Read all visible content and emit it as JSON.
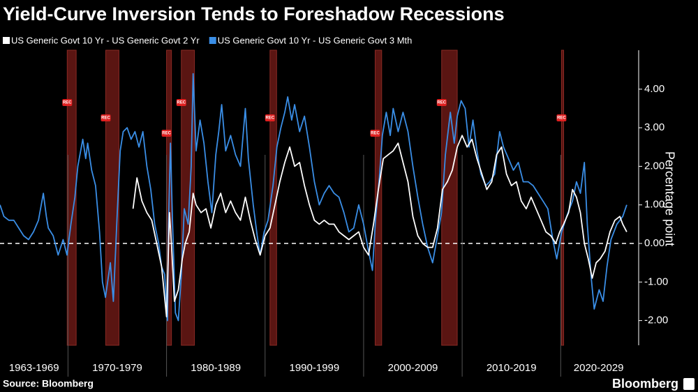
{
  "chart_data": {
    "type": "line",
    "title": "Yield-Curve Inversion Tends to Foreshadow Recessions",
    "y_label": "Percentage point",
    "source": "Source: Bloomberg",
    "brand": "Bloomberg",
    "recession_label": "REC",
    "xlim": [
      1963.1,
      2027.7
    ],
    "xticks": [
      1970,
      1980,
      1990,
      2000,
      2010,
      2020
    ],
    "x_period_labels": [
      "1963-1969",
      "1970-1979",
      "1980-1989",
      "1990-1999",
      "2000-2009",
      "2010-2019",
      "2020-2029"
    ],
    "ylim": [
      -2.64,
      5.01
    ],
    "yticks": [
      {
        "value": -2,
        "label": "-2.00"
      },
      {
        "value": -1,
        "label": "-1.00"
      },
      {
        "value": 0,
        "label": "0.00"
      },
      {
        "value": 1,
        "label": "1.00"
      },
      {
        "value": 2,
        "label": "2.00"
      },
      {
        "value": 3,
        "label": "3.00"
      },
      {
        "value": 4,
        "label": "4.00"
      }
    ],
    "zero_line": true,
    "recessions": [
      [
        1969.92,
        1970.83
      ],
      [
        1973.83,
        1975.17
      ],
      [
        1980.0,
        1980.5
      ],
      [
        1981.5,
        1982.83
      ],
      [
        1990.5,
        1991.17
      ],
      [
        2001.17,
        2001.83
      ],
      [
        2007.92,
        2009.5
      ],
      [
        2020.08,
        2020.3
      ]
    ],
    "series": [
      {
        "name": "US Generic Govt 10 Yr - US Generic Govt 2 Yr",
        "color": "#ffffff",
        "x": [
          1976.6,
          1977,
          1977.5,
          1978,
          1978.5,
          1979,
          1979.5,
          1980,
          1980.3,
          1980.5,
          1980.8,
          1981.2,
          1981.6,
          1981.9,
          1982.3,
          1982.7,
          1983,
          1983.5,
          1984,
          1984.5,
          1985,
          1985.5,
          1986,
          1986.5,
          1987,
          1987.5,
          1988,
          1988.5,
          1989,
          1989.5,
          1990,
          1990.5,
          1991,
          1991.5,
          1992,
          1992.5,
          1993,
          1993.5,
          1994,
          1994.5,
          1995,
          1995.5,
          1996,
          1996.5,
          1997,
          1997.5,
          1998,
          1998.5,
          1999,
          1999.5,
          2000,
          2000.5,
          2001,
          2001.5,
          2002,
          2002.5,
          2003,
          2003.5,
          2004,
          2004.5,
          2005,
          2005.5,
          2006,
          2006.5,
          2007,
          2007.5,
          2008,
          2008.5,
          2009,
          2009.5,
          2010,
          2010.5,
          2011,
          2011.5,
          2012,
          2012.5,
          2013,
          2013.5,
          2014,
          2014.5,
          2015,
          2015.5,
          2016,
          2016.5,
          2017,
          2017.5,
          2018,
          2018.5,
          2019,
          2019.5,
          2019.9,
          2020.3,
          2020.8,
          2021.2,
          2021.6,
          2022,
          2022.4,
          2022.8,
          2023.2,
          2023.6,
          2024,
          2024.5,
          2025,
          2025.5,
          2026,
          2026.3,
          2026.7
        ],
        "values": [
          0.9,
          1.7,
          1.1,
          0.8,
          0.6,
          0.0,
          -0.6,
          -1.9,
          0.8,
          0.0,
          -1.5,
          -1.2,
          -0.4,
          0.0,
          0.3,
          1.3,
          1.0,
          0.8,
          0.9,
          0.4,
          1.0,
          1.3,
          0.8,
          1.1,
          0.8,
          0.6,
          1.2,
          0.6,
          0.1,
          -0.3,
          0.2,
          0.4,
          1.0,
          1.6,
          2.1,
          2.5,
          2.0,
          2.1,
          1.5,
          1.0,
          0.6,
          0.5,
          0.6,
          0.5,
          0.5,
          0.3,
          0.2,
          0.1,
          0.2,
          0.3,
          -0.1,
          -0.3,
          0.5,
          1.4,
          2.2,
          2.3,
          2.4,
          2.6,
          2.1,
          1.6,
          0.7,
          0.2,
          0.0,
          -0.1,
          -0.1,
          0.4,
          1.4,
          1.6,
          1.9,
          2.5,
          2.8,
          2.5,
          2.7,
          2.2,
          1.8,
          1.4,
          1.6,
          2.3,
          2.5,
          1.8,
          1.5,
          1.6,
          1.1,
          0.9,
          1.2,
          0.9,
          0.6,
          0.3,
          0.2,
          0.0,
          0.3,
          0.5,
          0.8,
          1.4,
          1.2,
          0.8,
          0.0,
          -0.4,
          -0.9,
          -0.5,
          -0.4,
          -0.2,
          0.3,
          0.6,
          0.7,
          0.5,
          0.3
        ]
      },
      {
        "name": "US Generic Govt 10 Yr - US Generic Govt 3 Mth",
        "color": "#3a8ee6",
        "x": [
          1963.1,
          1963.5,
          1964,
          1964.5,
          1965,
          1965.5,
          1966,
          1966.5,
          1967,
          1967.5,
          1967.8,
          1968,
          1968.5,
          1969,
          1969.5,
          1969.9,
          1970.3,
          1970.7,
          1971,
          1971.5,
          1971.8,
          1972,
          1972.4,
          1972.8,
          1973.2,
          1973.5,
          1973.8,
          1974.3,
          1974.6,
          1975,
          1975.3,
          1975.6,
          1976,
          1976.4,
          1976.8,
          1977.2,
          1977.6,
          1978,
          1978.4,
          1978.8,
          1979.2,
          1979.5,
          1979.8,
          1980.1,
          1980.2,
          1980.4,
          1980.6,
          1980.9,
          1981.2,
          1981.5,
          1981.8,
          1982.2,
          1982.5,
          1982.7,
          1983,
          1983.4,
          1983.8,
          1984.2,
          1984.6,
          1985,
          1985.3,
          1985.6,
          1986,
          1986.5,
          1987,
          1987.5,
          1988,
          1988.3,
          1988.8,
          1989.2,
          1989.5,
          1989.9,
          1990.3,
          1990.8,
          1991.2,
          1991.6,
          1992,
          1992.3,
          1992.7,
          1993,
          1993.5,
          1994,
          1994.5,
          1995,
          1995.5,
          1996,
          1996.5,
          1997,
          1997.5,
          1998,
          1998.5,
          1999,
          1999.5,
          2000,
          2000.5,
          2000.9,
          2001.2,
          2001.6,
          2001.9,
          2002.3,
          2002.7,
          2003,
          2003.5,
          2004,
          2004.5,
          2005,
          2005.5,
          2006,
          2006.5,
          2007,
          2007.5,
          2007.9,
          2008.3,
          2008.8,
          2009.2,
          2009.5,
          2009.9,
          2010.3,
          2010.7,
          2011.1,
          2011.5,
          2011.9,
          2012.4,
          2012.8,
          2013.3,
          2013.8,
          2014.2,
          2014.7,
          2015.2,
          2015.7,
          2016.2,
          2016.7,
          2017.2,
          2017.7,
          2018.2,
          2018.7,
          2019.2,
          2019.6,
          2020.1,
          2020.6,
          2021.2,
          2021.6,
          2022,
          2022.4,
          2022.7,
          2023.1,
          2023.4,
          2023.9,
          2024.3,
          2024.7,
          2025.1,
          2025.7,
          2026.3,
          2026.7
        ],
        "values": [
          1.0,
          0.7,
          0.6,
          0.6,
          0.4,
          0.2,
          0.1,
          0.3,
          0.6,
          1.3,
          0.7,
          0.4,
          0.2,
          -0.3,
          0.1,
          -0.3,
          0.5,
          1.2,
          2.0,
          2.7,
          2.2,
          2.6,
          1.9,
          1.5,
          0.3,
          -1.0,
          -1.4,
          -0.5,
          -1.5,
          0.8,
          2.4,
          2.9,
          3.0,
          2.7,
          2.9,
          2.5,
          2.9,
          2.0,
          1.4,
          0.5,
          0.0,
          -0.6,
          -0.8,
          -2.0,
          0.5,
          2.6,
          0.6,
          -1.8,
          -2.0,
          -0.8,
          0.9,
          0.5,
          2.0,
          4.4,
          2.4,
          3.2,
          2.6,
          1.6,
          0.8,
          2.3,
          2.9,
          3.6,
          2.4,
          2.8,
          2.3,
          2.0,
          3.5,
          2.2,
          1.0,
          0.2,
          -0.3,
          0.3,
          0.6,
          1.5,
          2.5,
          3.0,
          3.4,
          3.8,
          3.2,
          3.6,
          2.9,
          3.3,
          2.5,
          1.6,
          1.0,
          1.3,
          1.5,
          1.3,
          1.2,
          0.8,
          0.3,
          0.4,
          1.0,
          0.5,
          -0.2,
          -0.7,
          0.6,
          1.7,
          2.8,
          3.4,
          2.8,
          3.5,
          2.9,
          3.4,
          2.9,
          2.0,
          1.2,
          0.5,
          -0.1,
          -0.5,
          0.2,
          0.8,
          2.3,
          3.4,
          2.6,
          3.3,
          3.7,
          3.5,
          2.5,
          3.2,
          2.4,
          1.8,
          1.5,
          1.6,
          1.8,
          2.9,
          2.5,
          2.2,
          1.9,
          2.1,
          1.6,
          1.6,
          1.5,
          1.3,
          1.1,
          0.9,
          0.1,
          -0.4,
          0.3,
          0.7,
          1.1,
          1.6,
          1.3,
          2.1,
          0.5,
          -0.9,
          -1.7,
          -1.2,
          -1.5,
          -0.6,
          0.1,
          0.5,
          0.7,
          1.0
        ]
      }
    ]
  }
}
